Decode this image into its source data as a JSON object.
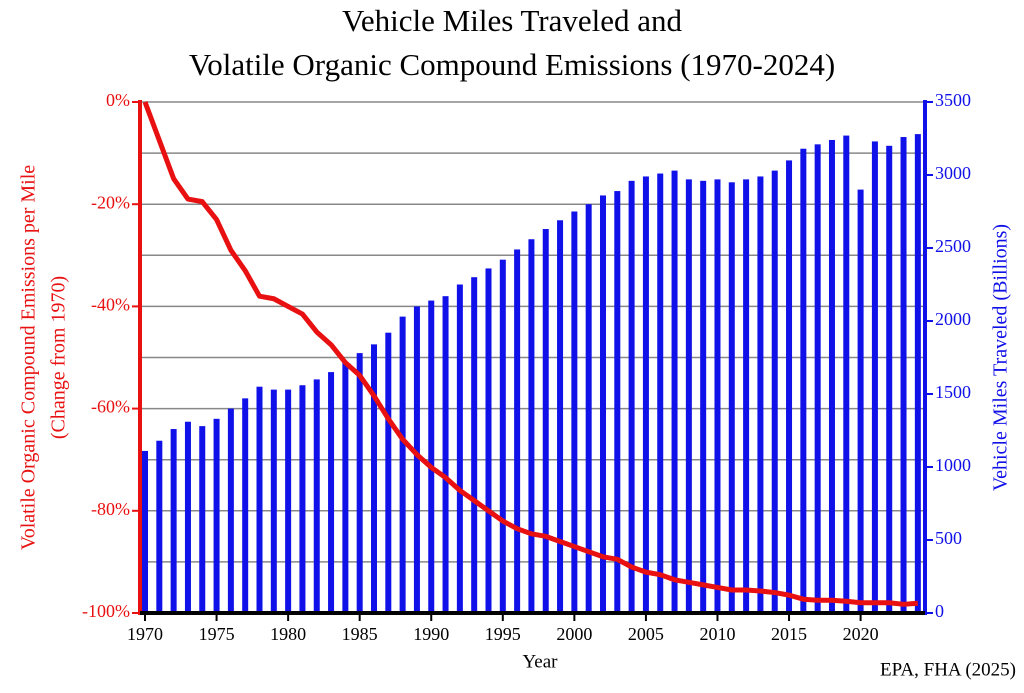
{
  "chart_data": {
    "type": "combo",
    "title": [
      "Vehicle Miles Traveled and",
      "Volatile Organic Compound Emissions (1970-2024)"
    ],
    "y_label": [
      "Volatile Organic Compound Emissions per Mile",
      "(Change from 1970)"
    ],
    "y2_label": "Vehicle Miles Traveled (Billions)",
    "x_label": "Year",
    "source": "EPA, FHA (2025)",
    "x": [
      1970,
      1971,
      1972,
      1973,
      1974,
      1975,
      1976,
      1977,
      1978,
      1979,
      1980,
      1981,
      1982,
      1983,
      1984,
      1985,
      1986,
      1987,
      1988,
      1989,
      1990,
      1991,
      1992,
      1993,
      1994,
      1995,
      1996,
      1997,
      1998,
      1999,
      2000,
      2001,
      2002,
      2003,
      2004,
      2005,
      2006,
      2007,
      2008,
      2009,
      2010,
      2011,
      2012,
      2013,
      2014,
      2015,
      2016,
      2017,
      2018,
      2019,
      2020,
      2021,
      2022,
      2023,
      2024
    ],
    "xlim": [
      1969.65,
      2024.5
    ],
    "xticks": [
      1970,
      1975,
      1980,
      1985,
      1990,
      1995,
      2000,
      2005,
      2010,
      2015,
      2020
    ],
    "ylim": [
      -100,
      0
    ],
    "yticks": [
      {
        "value": -100,
        "label": "-100%"
      },
      {
        "value": -80,
        "label": "-80%"
      },
      {
        "value": -60,
        "label": "-60%"
      },
      {
        "value": -40,
        "label": "-40%"
      },
      {
        "value": -20,
        "label": "-20%"
      },
      {
        "value": 0,
        "label": "0%"
      }
    ],
    "ygrid": [
      -100,
      -90,
      -80,
      -70,
      -60,
      -50,
      -40,
      -30,
      -20,
      -10,
      0
    ],
    "y2lim": [
      0,
      3500
    ],
    "y2ticks": [
      0,
      500,
      1000,
      1500,
      2000,
      2500,
      3000,
      3500
    ],
    "y_color": "#e81010",
    "y2_color": "#1010e8",
    "series": [
      {
        "type": "bar",
        "axis": "y2",
        "color": "#1010e8",
        "values": [
          1110,
          1180,
          1260,
          1310,
          1280,
          1330,
          1400,
          1470,
          1550,
          1530,
          1530,
          1560,
          1600,
          1650,
          1720,
          1780,
          1840,
          1920,
          2030,
          2100,
          2140,
          2170,
          2250,
          2300,
          2360,
          2420,
          2490,
          2560,
          2630,
          2690,
          2750,
          2800,
          2860,
          2890,
          2960,
          2990,
          3010,
          3030,
          2970,
          2960,
          2970,
          2950,
          2970,
          2990,
          3030,
          3100,
          3180,
          3210,
          3240,
          3270,
          2900,
          3230,
          3200,
          3260,
          3280
        ]
      },
      {
        "type": "line",
        "axis": "y",
        "color": "#e81010",
        "values": [
          0,
          -7.5,
          -15,
          -19,
          -19.5,
          -23,
          -29,
          -33,
          -38,
          -38.5,
          -40,
          -41.5,
          -45,
          -47.5,
          -51,
          -53.5,
          -57.5,
          -62,
          -66,
          -69,
          -71.5,
          -73.5,
          -76,
          -78,
          -80,
          -82,
          -83.5,
          -84.5,
          -85,
          -86,
          -87,
          -88,
          -89,
          -89.5,
          -91,
          -92,
          -92.5,
          -93.5,
          -94,
          -94.5,
          -95,
          -95.5,
          -95.5,
          -95.7,
          -96,
          -96.5,
          -97.3,
          -97.5,
          -97.5,
          -97.7,
          -98,
          -98,
          -98,
          -98.3,
          -98.1
        ]
      }
    ]
  }
}
